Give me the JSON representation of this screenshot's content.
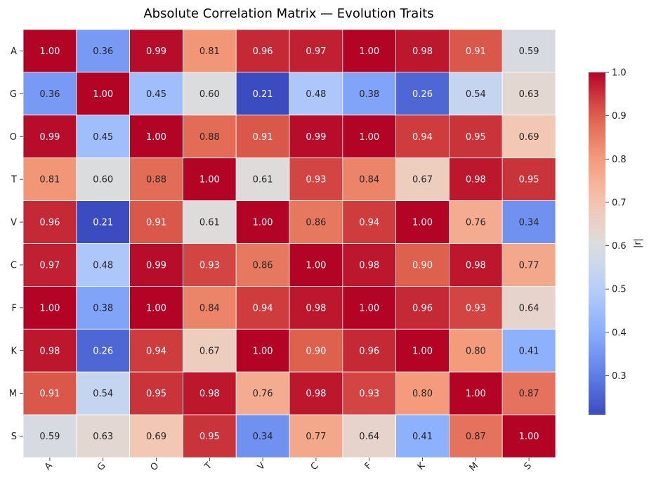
{
  "chart_data": {
    "type": "heatmap",
    "title": "Absolute Correlation Matrix — Evolution Traits",
    "rows": [
      "A",
      "G",
      "O",
      "T",
      "V",
      "C",
      "F",
      "K",
      "M",
      "S"
    ],
    "cols": [
      "A",
      "G",
      "O",
      "T",
      "V",
      "C",
      "F",
      "K",
      "M",
      "S"
    ],
    "values": [
      [
        1.0,
        0.36,
        0.99,
        0.81,
        0.96,
        0.97,
        1.0,
        0.98,
        0.91,
        0.59
      ],
      [
        0.36,
        1.0,
        0.45,
        0.6,
        0.21,
        0.48,
        0.38,
        0.26,
        0.54,
        0.63
      ],
      [
        0.99,
        0.45,
        1.0,
        0.88,
        0.91,
        0.99,
        1.0,
        0.94,
        0.95,
        0.69
      ],
      [
        0.81,
        0.6,
        0.88,
        1.0,
        0.61,
        0.93,
        0.84,
        0.67,
        0.98,
        0.95
      ],
      [
        0.96,
        0.21,
        0.91,
        0.61,
        1.0,
        0.86,
        0.94,
        1.0,
        0.76,
        0.34
      ],
      [
        0.97,
        0.48,
        0.99,
        0.93,
        0.86,
        1.0,
        0.98,
        0.9,
        0.98,
        0.77
      ],
      [
        1.0,
        0.38,
        1.0,
        0.84,
        0.94,
        0.98,
        1.0,
        0.96,
        0.93,
        0.64
      ],
      [
        0.98,
        0.26,
        0.94,
        0.67,
        1.0,
        0.9,
        0.96,
        1.0,
        0.8,
        0.41
      ],
      [
        0.91,
        0.54,
        0.95,
        0.98,
        0.76,
        0.98,
        0.93,
        0.8,
        1.0,
        0.87
      ],
      [
        0.59,
        0.63,
        0.69,
        0.95,
        0.34,
        0.77,
        0.64,
        0.41,
        0.87,
        1.0
      ]
    ],
    "value_format": "2 decimals",
    "colormap": "coolwarm",
    "color_range": [
      0.21,
      1.0
    ],
    "colorbar": {
      "label": "|r|",
      "ticks": [
        0.3,
        0.4,
        0.5,
        0.6,
        0.7,
        0.8,
        0.9,
        1.0
      ],
      "tick_labels": [
        "0.3",
        "0.4",
        "0.5",
        "0.6",
        "0.7",
        "0.8",
        "0.9",
        "1.0"
      ],
      "placement": "right"
    },
    "grid": false
  }
}
